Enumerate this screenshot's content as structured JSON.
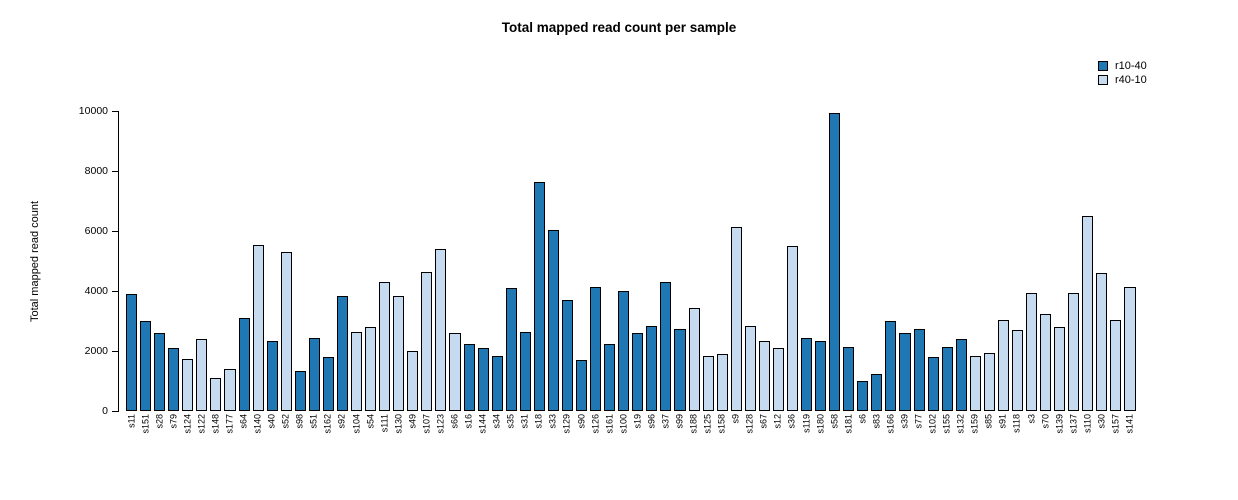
{
  "chart_data": {
    "type": "bar",
    "title": "Total mapped read count per sample",
    "xlabel": "",
    "ylabel": "Total mapped read count",
    "ylim": [
      0,
      10000
    ],
    "yticks": [
      0,
      2000,
      4000,
      6000,
      8000,
      10000
    ],
    "grid": false,
    "legend_position": "top-right",
    "series": [
      {
        "name": "r10-40",
        "color": "#1F78B4"
      },
      {
        "name": "r40-10",
        "color": "#C6DBEF"
      }
    ],
    "bars": [
      {
        "sample": "s11",
        "value": 3900,
        "series": "r10-40"
      },
      {
        "sample": "s151",
        "value": 3000,
        "series": "r10-40"
      },
      {
        "sample": "s28",
        "value": 2600,
        "series": "r10-40"
      },
      {
        "sample": "s79",
        "value": 2100,
        "series": "r10-40"
      },
      {
        "sample": "s124",
        "value": 1750,
        "series": "r40-10"
      },
      {
        "sample": "s122",
        "value": 2400,
        "series": "r40-10"
      },
      {
        "sample": "s148",
        "value": 1100,
        "series": "r40-10"
      },
      {
        "sample": "s177",
        "value": 1400,
        "series": "r40-10"
      },
      {
        "sample": "s64",
        "value": 3100,
        "series": "r10-40"
      },
      {
        "sample": "s140",
        "value": 5550,
        "series": "r40-10"
      },
      {
        "sample": "s40",
        "value": 2350,
        "series": "r10-40"
      },
      {
        "sample": "s52",
        "value": 5300,
        "series": "r40-10"
      },
      {
        "sample": "s98",
        "value": 1350,
        "series": "r10-40"
      },
      {
        "sample": "s51",
        "value": 2450,
        "series": "r10-40"
      },
      {
        "sample": "s162",
        "value": 1800,
        "series": "r10-40"
      },
      {
        "sample": "s92",
        "value": 3850,
        "series": "r10-40"
      },
      {
        "sample": "s104",
        "value": 2650,
        "series": "r40-10"
      },
      {
        "sample": "s54",
        "value": 2800,
        "series": "r40-10"
      },
      {
        "sample": "s111",
        "value": 4300,
        "series": "r40-10"
      },
      {
        "sample": "s130",
        "value": 3850,
        "series": "r40-10"
      },
      {
        "sample": "s49",
        "value": 2000,
        "series": "r40-10"
      },
      {
        "sample": "s107",
        "value": 4650,
        "series": "r40-10"
      },
      {
        "sample": "s123",
        "value": 5400,
        "series": "r40-10"
      },
      {
        "sample": "s66",
        "value": 2600,
        "series": "r40-10"
      },
      {
        "sample": "s16",
        "value": 2250,
        "series": "r10-40"
      },
      {
        "sample": "s144",
        "value": 2100,
        "series": "r10-40"
      },
      {
        "sample": "s34",
        "value": 1850,
        "series": "r10-40"
      },
      {
        "sample": "s35",
        "value": 4100,
        "series": "r10-40"
      },
      {
        "sample": "s31",
        "value": 2650,
        "series": "r10-40"
      },
      {
        "sample": "s18",
        "value": 7650,
        "series": "r10-40"
      },
      {
        "sample": "s33",
        "value": 6050,
        "series": "r10-40"
      },
      {
        "sample": "s129",
        "value": 3700,
        "series": "r10-40"
      },
      {
        "sample": "s90",
        "value": 1700,
        "series": "r10-40"
      },
      {
        "sample": "s126",
        "value": 4150,
        "series": "r10-40"
      },
      {
        "sample": "s161",
        "value": 2250,
        "series": "r10-40"
      },
      {
        "sample": "s100",
        "value": 4000,
        "series": "r10-40"
      },
      {
        "sample": "s19",
        "value": 2600,
        "series": "r10-40"
      },
      {
        "sample": "s96",
        "value": 2850,
        "series": "r10-40"
      },
      {
        "sample": "s37",
        "value": 4300,
        "series": "r10-40"
      },
      {
        "sample": "s99",
        "value": 2750,
        "series": "r10-40"
      },
      {
        "sample": "s188",
        "value": 3450,
        "series": "r40-10"
      },
      {
        "sample": "s125",
        "value": 1850,
        "series": "r40-10"
      },
      {
        "sample": "s158",
        "value": 1900,
        "series": "r40-10"
      },
      {
        "sample": "s9",
        "value": 6150,
        "series": "r40-10"
      },
      {
        "sample": "s128",
        "value": 2850,
        "series": "r40-10"
      },
      {
        "sample": "s67",
        "value": 2350,
        "series": "r40-10"
      },
      {
        "sample": "s12",
        "value": 2100,
        "series": "r40-10"
      },
      {
        "sample": "s36",
        "value": 5500,
        "series": "r40-10"
      },
      {
        "sample": "s119",
        "value": 2450,
        "series": "r10-40"
      },
      {
        "sample": "s180",
        "value": 2350,
        "series": "r10-40"
      },
      {
        "sample": "s58",
        "value": 9950,
        "series": "r10-40"
      },
      {
        "sample": "s181",
        "value": 2150,
        "series": "r10-40"
      },
      {
        "sample": "s6",
        "value": 1000,
        "series": "r10-40"
      },
      {
        "sample": "s83",
        "value": 1250,
        "series": "r10-40"
      },
      {
        "sample": "s166",
        "value": 3000,
        "series": "r10-40"
      },
      {
        "sample": "s39",
        "value": 2600,
        "series": "r10-40"
      },
      {
        "sample": "s77",
        "value": 2750,
        "series": "r10-40"
      },
      {
        "sample": "s102",
        "value": 1800,
        "series": "r10-40"
      },
      {
        "sample": "s155",
        "value": 2150,
        "series": "r10-40"
      },
      {
        "sample": "s132",
        "value": 2400,
        "series": "r10-40"
      },
      {
        "sample": "s159",
        "value": 1850,
        "series": "r40-10"
      },
      {
        "sample": "s85",
        "value": 1950,
        "series": "r40-10"
      },
      {
        "sample": "s91",
        "value": 3050,
        "series": "r40-10"
      },
      {
        "sample": "s118",
        "value": 2700,
        "series": "r40-10"
      },
      {
        "sample": "s3",
        "value": 3950,
        "series": "r40-10"
      },
      {
        "sample": "s70",
        "value": 3250,
        "series": "r40-10"
      },
      {
        "sample": "s139",
        "value": 2800,
        "series": "r40-10"
      },
      {
        "sample": "s137",
        "value": 3950,
        "series": "r40-10"
      },
      {
        "sample": "s110",
        "value": 6500,
        "series": "r40-10"
      },
      {
        "sample": "s30",
        "value": 4600,
        "series": "r40-10"
      },
      {
        "sample": "s157",
        "value": 3050,
        "series": "r40-10"
      },
      {
        "sample": "s141",
        "value": 4150,
        "series": "r40-10"
      }
    ]
  }
}
